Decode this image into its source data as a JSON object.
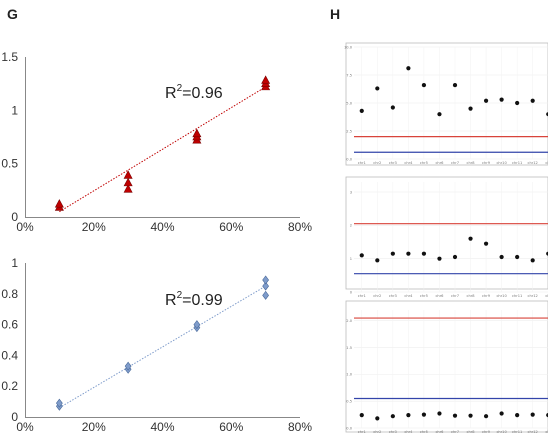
{
  "panels": {
    "left": "G",
    "right": "H"
  },
  "colors": {
    "red": "#c00000",
    "blue": "#7f9ccb",
    "hred": "#d8433a",
    "hblue": "#3344aa",
    "dot": "#111111"
  },
  "chart_data": [
    {
      "type": "scatter",
      "panel": "G",
      "marker": "triangle",
      "annotation": {
        "prefix": "R",
        "sup": "2",
        "suffix": "=0.96"
      },
      "xlim": [
        0,
        0.8
      ],
      "ylim": [
        0,
        1.5
      ],
      "x_ticks": [
        "0%",
        "20%",
        "40%",
        "60%",
        "80%"
      ],
      "y_ticks": [
        "0",
        "0.5",
        "1",
        "1.5"
      ],
      "x_tick_vals": [
        0,
        0.2,
        0.4,
        0.6,
        0.8
      ],
      "y_tick_vals": [
        0,
        0.5,
        1,
        1.5
      ],
      "trendline": {
        "x": [
          0.1,
          0.7
        ],
        "y": [
          0.05,
          1.22
        ]
      },
      "points": {
        "x": [
          0.1,
          0.1,
          0.3,
          0.3,
          0.3,
          0.5,
          0.5,
          0.5,
          0.7,
          0.7,
          0.7
        ],
        "y": [
          0.09,
          0.12,
          0.26,
          0.32,
          0.39,
          0.72,
          0.75,
          0.78,
          1.22,
          1.25,
          1.28
        ]
      }
    },
    {
      "type": "scatter",
      "panel": "G",
      "marker": "diamond",
      "annotation": {
        "prefix": "R",
        "sup": "2",
        "suffix": "=0.99"
      },
      "xlim": [
        0,
        0.8
      ],
      "ylim": [
        0,
        1
      ],
      "x_ticks": [
        "0%",
        "20%",
        "40%",
        "60%",
        "80%"
      ],
      "y_ticks": [
        "0",
        "0.2",
        "0.4",
        "0.6",
        "0.8",
        "1"
      ],
      "x_tick_vals": [
        0,
        0.2,
        0.4,
        0.6,
        0.8
      ],
      "y_tick_vals": [
        0,
        0.2,
        0.4,
        0.6,
        0.8,
        1
      ],
      "trendline": {
        "x": [
          0.1,
          0.7
        ],
        "y": [
          0.06,
          0.85
        ]
      },
      "points": {
        "x": [
          0.1,
          0.1,
          0.3,
          0.3,
          0.5,
          0.5,
          0.7,
          0.7,
          0.7
        ],
        "y": [
          0.07,
          0.09,
          0.31,
          0.33,
          0.58,
          0.6,
          0.79,
          0.85,
          0.89
        ]
      }
    },
    {
      "type": "scatter",
      "panel": "H",
      "ylim": [
        0,
        10
      ],
      "y_ticks": [
        "0.0",
        "2.5",
        "5.0",
        "7.5",
        "10.0"
      ],
      "y_tick_vals": [
        0,
        2.5,
        5,
        7.5,
        10
      ],
      "categories": [
        "chr1",
        "chr2",
        "chr3",
        "chr4",
        "chr5",
        "chr6",
        "chr7",
        "chr8",
        "chr9",
        "chr10",
        "chr11",
        "chr12",
        "chr"
      ],
      "values": [
        4.3,
        6.3,
        4.6,
        8.1,
        6.6,
        4.0,
        6.6,
        4.5,
        5.2,
        5.3,
        5.0,
        5.2,
        4.0
      ],
      "hlines": {
        "red": 2.0,
        "blue": 0.6
      }
    },
    {
      "type": "scatter",
      "panel": "H",
      "ylim": [
        0,
        3.3
      ],
      "y_ticks": [
        "0",
        "1",
        "2",
        "3"
      ],
      "y_tick_vals": [
        0,
        1,
        2,
        3
      ],
      "categories": [
        "chr1",
        "chr2",
        "chr3",
        "chr4",
        "chr5",
        "chr6",
        "chr7",
        "chr8",
        "chr9",
        "chr10",
        "chr11",
        "chr12",
        "chr"
      ],
      "values": [
        1.1,
        0.95,
        1.15,
        1.15,
        1.15,
        1.0,
        1.05,
        1.6,
        1.45,
        1.05,
        1.05,
        0.95,
        1.15
      ],
      "hlines": {
        "red": 2.05,
        "blue": 0.55
      }
    },
    {
      "type": "scatter",
      "panel": "H",
      "ylim": [
        0,
        2.2
      ],
      "y_ticks": [
        "0.0",
        "0.5",
        "1.0",
        "1.5",
        "2.0"
      ],
      "y_tick_vals": [
        0,
        0.5,
        1,
        1.5,
        2
      ],
      "categories": [
        "chr1",
        "chr2",
        "chr3",
        "chr4",
        "chr5",
        "chr6",
        "chr7",
        "chr8",
        "chr9",
        "chr10",
        "chr11",
        "chr12",
        "chr"
      ],
      "values": [
        0.24,
        0.18,
        0.22,
        0.24,
        0.25,
        0.27,
        0.23,
        0.23,
        0.22,
        0.27,
        0.24,
        0.25,
        0.24
      ],
      "hlines": {
        "red": 2.05,
        "blue": 0.55
      }
    }
  ]
}
